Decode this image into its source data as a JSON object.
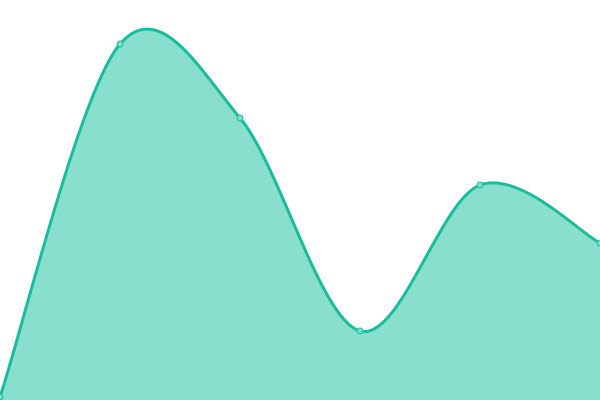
{
  "chart_data": {
    "type": "area",
    "title": "",
    "xlabel": "",
    "ylabel": "",
    "x": [
      0,
      1,
      2,
      3,
      4,
      5
    ],
    "series": [
      {
        "values": [
          3,
          356,
          282,
          69,
          215,
          157
        ]
      }
    ],
    "xlim": [
      0,
      5
    ],
    "ylim": [
      0,
      400
    ],
    "grid": false,
    "legend": "none",
    "smooth": true,
    "colors": {
      "line": "#1abc9c",
      "fill": "#88dfcd",
      "point_fill": "#7edcc8"
    }
  }
}
